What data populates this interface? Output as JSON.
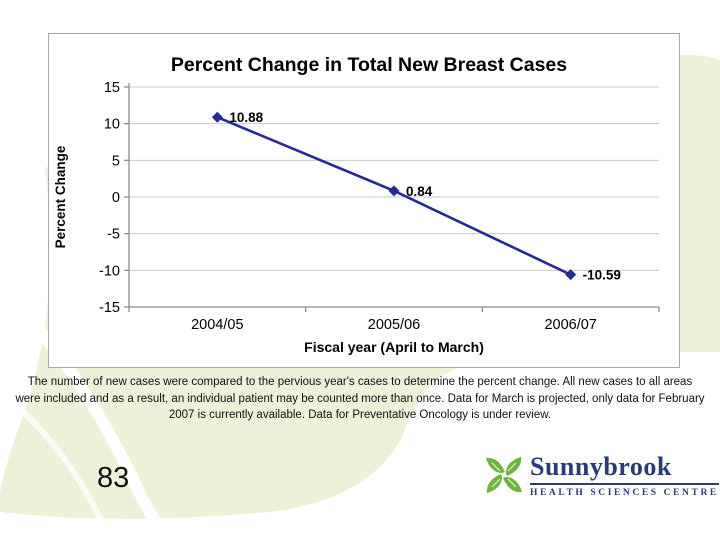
{
  "slide": {
    "page_number": "83",
    "note_text": "The number of new cases were compared to the pervious year's cases to determine the percent change. All new cases to all areas were included and as a result, an individual patient may be counted more than once. Data for March is projected, only data for February 2007 is currently available. Data for Preventative Oncology is under review."
  },
  "chart_data": {
    "type": "line",
    "title": "Percent Change in Total New Breast Cases",
    "categories": [
      "2004/05",
      "2005/06",
      "2006/07"
    ],
    "values": [
      10.88,
      0.84,
      -10.59
    ],
    "data_labels": [
      "10.88",
      "0.84",
      "-10.59"
    ],
    "xlabel": "Fiscal year (April to March)",
    "ylabel": "Percent Change",
    "ylim": [
      -15,
      15
    ],
    "ytick_step": 5,
    "grid": true,
    "legend_position": "none",
    "line_color": "#26299a",
    "marker": "diamond",
    "gridline_color": "#c9c9c9",
    "axis_color": "#8c8c8c"
  },
  "logo": {
    "name": "Sunnybrook",
    "subtitle": "HEALTH SCIENCES CENTRE",
    "leaf_green": "#6fb43f",
    "navy": "#2b3a78"
  },
  "colors": {
    "slide_background": "#ffffff",
    "accent_cream": "#eef0d8",
    "chart_border": "#a8a8a8"
  }
}
